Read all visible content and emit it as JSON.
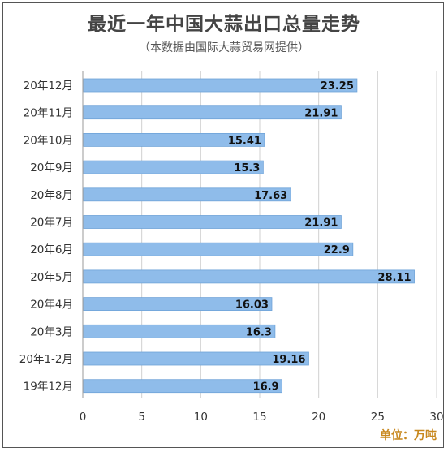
{
  "chart_data": {
    "type": "bar",
    "orientation": "horizontal",
    "title": "最近一年中国大蒜出口总量走势",
    "subtitle": "（本数据由国际大蒜贸易网提供）",
    "unit_label": "单位：万吨",
    "categories": [
      "20年12月",
      "20年11月",
      "20年10月",
      "20年9月",
      "20年8月",
      "20年7月",
      "20年6月",
      "20年5月",
      "20年4月",
      "20年3月",
      "20年1-2月",
      "19年12月"
    ],
    "values": [
      23.25,
      21.91,
      15.41,
      15.3,
      17.63,
      21.91,
      22.9,
      28.11,
      16.03,
      16.3,
      19.16,
      16.9
    ],
    "value_labels": [
      "23.25",
      "21.91",
      "15.41",
      "15.3",
      "17.63",
      "21.91",
      "22.9",
      "28.11",
      "16.03",
      "16.3",
      "19.16",
      "16.9"
    ],
    "xlim": [
      0,
      30
    ],
    "xticks": [
      0,
      5,
      10,
      15,
      20,
      25,
      30
    ],
    "xtick_labels": [
      "0",
      "5",
      "10",
      "15",
      "20",
      "25",
      "30"
    ],
    "grid": true,
    "colors": {
      "bar": "#8fbcea",
      "bar_edge": "#6fa3d8",
      "grid": "#d0d0d0",
      "unit": "#c8881e"
    }
  }
}
